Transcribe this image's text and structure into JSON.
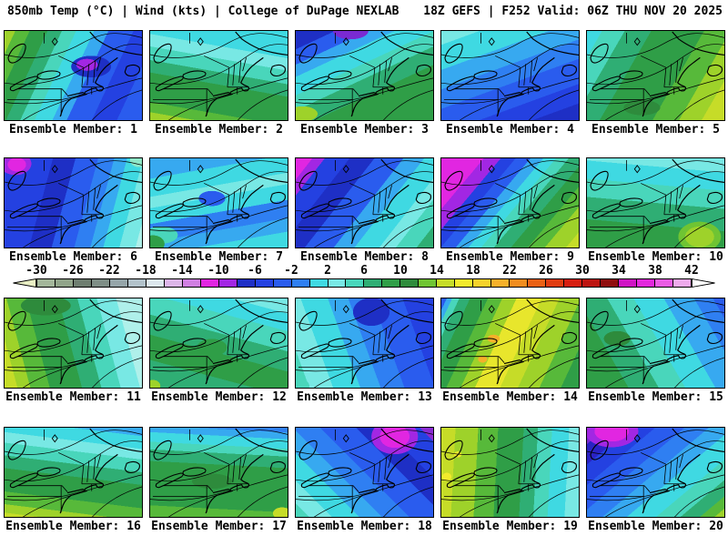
{
  "header": {
    "left": "850mb Temp (°C) | Wind (kts) | College of DuPage NEXLAB",
    "right": "18Z GEFS | F252 Valid: 06Z THU NOV 20 2025"
  },
  "product": {
    "parameter": "850mb Temperature (°C) and Wind (kts)",
    "model_run": "18Z GEFS",
    "forecast_hour": "F252",
    "valid_time": "06Z THU NOV 20 2025",
    "source": "College of DuPage NEXLAB"
  },
  "colorbar": {
    "unit": "°C",
    "ticks": [
      -30,
      -26,
      -22,
      -18,
      -14,
      -10,
      -6,
      -2,
      2,
      6,
      10,
      14,
      18,
      22,
      26,
      30,
      34,
      38,
      42
    ],
    "min": -30,
    "max": 42,
    "cell_width_degrees": 2,
    "underflow_arrow_color": "#e9efc4",
    "overflow_arrow_color": "#ffffff",
    "cells": [
      {
        "from": -30,
        "color": "#a3b69a"
      },
      {
        "from": -28,
        "color": "#90a489"
      },
      {
        "from": -26,
        "color": "#6e7e70"
      },
      {
        "from": -24,
        "color": "#7e8e86"
      },
      {
        "from": -22,
        "color": "#95a5a9"
      },
      {
        "from": -20,
        "color": "#b2c2ca"
      },
      {
        "from": -18,
        "color": "#dce7ed"
      },
      {
        "from": -16,
        "color": "#dcb5e8"
      },
      {
        "from": -14,
        "color": "#d07fe2"
      },
      {
        "from": -12,
        "color": "#e126e1"
      },
      {
        "from": -10,
        "color": "#a227e3"
      },
      {
        "from": -8,
        "color": "#1e2fc5"
      },
      {
        "from": -6,
        "color": "#2441e1"
      },
      {
        "from": -4,
        "color": "#2a5cee"
      },
      {
        "from": -2,
        "color": "#2f7ff2"
      },
      {
        "from": 0,
        "color": "#3fd9e2"
      },
      {
        "from": 2,
        "color": "#78e8e4"
      },
      {
        "from": 4,
        "color": "#49d6bb"
      },
      {
        "from": 6,
        "color": "#2fae74"
      },
      {
        "from": 8,
        "color": "#2f9e47"
      },
      {
        "from": 10,
        "color": "#2e8b3c"
      },
      {
        "from": 12,
        "color": "#6fc433"
      },
      {
        "from": 14,
        "color": "#c6dc28"
      },
      {
        "from": 16,
        "color": "#f2ea2c"
      },
      {
        "from": 18,
        "color": "#f5d22a"
      },
      {
        "from": 20,
        "color": "#f5b02a"
      },
      {
        "from": 22,
        "color": "#f08c1e"
      },
      {
        "from": 24,
        "color": "#ea6114"
      },
      {
        "from": 26,
        "color": "#e03c10"
      },
      {
        "from": 28,
        "color": "#d61e10"
      },
      {
        "from": 30,
        "color": "#bc1410"
      },
      {
        "from": 32,
        "color": "#8f0d0d"
      },
      {
        "from": 34,
        "color": "#cf14c4"
      },
      {
        "from": 36,
        "color": "#e228dc"
      },
      {
        "from": 38,
        "color": "#ea5ce4"
      },
      {
        "from": 40,
        "color": "#eeaaec"
      }
    ]
  },
  "panels": [
    {
      "label": "Ensemble Member: 1",
      "field": [
        "radial-gradient(ellipse 14% 12% at 60% 38%, #a227e3 0 55%, transparent 56%)",
        "radial-gradient(ellipse 24% 20% at 63% 40%, #1e2fc5 0 60%, transparent 61%)",
        "linear-gradient(115deg, #9ed22a 0 6%, #57b93a 6% 14%, #2f9e47 14% 24%, #2fae74 24% 32%, #49d6bb 32% 40%, #3fd9e2 40% 50%, #37a9f0 50% 58%, #2a5cee 58% 72%, #2441e1 72% 86%, #2a5cee 86% 100%)"
      ]
    },
    {
      "label": "Ensemble Member: 2",
      "field": [
        "linear-gradient(190deg, #3fd9e2 0 24%, #78e8e4 24% 35%, #49d6bb 35% 47%, #2fae74 47% 58%, #2f9e47 58% 84%, #57b93a 84% 93%, #9ed22a 93% 100%)"
      ]
    },
    {
      "label": "Ensemble Member: 3",
      "field": [
        "radial-gradient(ellipse 22% 16% at 40% 0%, #7a2ad2 0 58%, transparent 59%)",
        "radial-gradient(ellipse 18% 14% at 5% 93%, #9ed22a 0 60%, transparent 61%)",
        "linear-gradient(155deg, #1e2fc5 0 12%, #2a5cee 12% 22%, #37a9f0 22% 30%, #3fd9e2 30% 42%, #49d6bb 42% 52%, #2fae74 52% 64%, #2f9e47 64% 100%)"
      ]
    },
    {
      "label": "Ensemble Member: 4",
      "field": [
        "linear-gradient(160deg, #78e8e4 0 10%, #3fd9e2 10% 28%, #37a9f0 28% 42%, #2f7ff2 42% 56%, #2a5cee 56% 74%, #2441e1 74% 88%, #1e2fc5 88% 100%)"
      ]
    },
    {
      "label": "Ensemble Member: 5",
      "field": [
        "radial-gradient(ellipse 22% 14% at 40% 86%, #2e8b3c 0 60%, transparent 61%)",
        "linear-gradient(120deg, #3fd9e2 0 8%, #49d6bb 8% 20%, #2fae74 20% 34%, #2f9e47 34% 62%, #57b93a 62% 76%, #9ed22a 76% 88%, #c6dc28 88% 100%)"
      ]
    },
    {
      "label": "Ensemble Member: 6",
      "field": [
        "radial-gradient(ellipse 12% 14% at 9% 7%, #e126e1 0 55%, transparent 56%)",
        "radial-gradient(ellipse 19% 21% at 8% 6%, #a227e3 0 60%, transparent 61%)",
        "radial-gradient(ellipse 11% 13% at 98% 2%, #8fe8c8 0 60%, transparent 61%)",
        "linear-gradient(105deg, #2441e1 0 30%, #1e2fc5 30% 44%, #2a5cee 44% 58%, #2f7ff2 58% 68%, #37a9f0 68% 76%, #3fd9e2 76% 86%, #78e8e4 86% 96%, #aff0ea 96% 100%)"
      ]
    },
    {
      "label": "Ensemble Member: 7",
      "field": [
        "radial-gradient(ellipse 16% 14% at 45% 45%, #2a5cee 0 60%, transparent 61%)",
        "radial-gradient(ellipse 14% 16% at 2% 96%, #2f9e47 0 60%, transparent 61%)",
        "radial-gradient(ellipse 20% 16% at 8% 86%, #49d6bb 0 60%, transparent 61%)",
        "linear-gradient(170deg, #37a9f0 0 18%, #3fd9e2 18% 34%, #78e8e4 34% 44%, #3fd9e2 44% 58%, #2f7ff2 58% 74%, #37a9f0 74% 86%, #3fd9e2 86% 100%)"
      ]
    },
    {
      "label": "Ensemble Member: 8",
      "field": [
        "linear-gradient(128deg, #e126e1 0 8%, #a227e3 8% 14%, #2441e1 14% 26%, #1e2fc5 26% 38%, #2a5cee 38% 52%, #37a9f0 52% 62%, #3fd9e2 62% 74%, #78e8e4 74% 82%, #49d6bb 82% 92%, #2fae74 92% 100%)"
      ]
    },
    {
      "label": "Ensemble Member: 9",
      "field": [
        "linear-gradient(130deg, #e126e1 0 20%, #a227e3 20% 28%, #2441e1 28% 35%, #2a5cee 35% 42%, #37a9f0 42% 48%, #3fd9e2 48% 54%, #49d6bb 54% 60%, #2fae74 60% 68%, #2f9e47 68% 76%, #57b93a 76% 84%, #9ed22a 84% 94%, #c6dc28 94% 100%)"
      ]
    },
    {
      "label": "Ensemble Member: 10",
      "field": [
        "radial-gradient(ellipse 22% 24% at 82% 88%, #9ed22a 0 48%, #6fc433 48% 70%, transparent 71%)",
        "linear-gradient(185deg, #78e8e4 0 14%, #3fd9e2 14% 32%, #49d6bb 32% 50%, #2fae74 50% 72%, #2f9e47 72% 100%)"
      ]
    },
    {
      "label": "Ensemble Member: 11",
      "field": [
        "radial-gradient(ellipse 30% 18% at 30% 8%, #2e8b3c 0 60%, transparent 61%)",
        "linear-gradient(75deg, #c6dc28 0 8%, #9ed22a 8% 16%, #57b93a 16% 28%, #2f9e47 28% 48%, #2fae74 48% 60%, #49d6bb 60% 72%, #78e8e4 72% 84%, #aff0ea 84% 100%)"
      ]
    },
    {
      "label": "Ensemble Member: 12",
      "field": [
        "radial-gradient(ellipse 18% 16% at 45% 55%, #2f9e47 0 60%, transparent 61%)",
        "radial-gradient(ellipse 9% 11% at 2% 98%, #9ed22a 0 60%, transparent 61%)",
        "linear-gradient(195deg, #78e8e4 0 12%, #3fd9e2 12% 26%, #49d6bb 26% 42%, #2fae74 42% 58%, #2f9e47 58% 78%, #2fae74 78% 100%)"
      ]
    },
    {
      "label": "Ensemble Member: 13",
      "field": [
        "radial-gradient(ellipse 22% 26% at 55% 15%, #1e2fc5 0 60%, transparent 61%)",
        "radial-gradient(ellipse 13% 13% at 2% 98%, #49d6bb 0 60%, transparent 61%)",
        "linear-gradient(250deg, #2441e1 0 18%, #2a5cee 18% 36%, #2f7ff2 36% 50%, #37a9f0 50% 62%, #3fd9e2 62% 78%, #78e8e4 78% 92%, #49d6bb 92% 100%)"
      ]
    },
    {
      "label": "Ensemble Member: 14",
      "field": [
        "radial-gradient(ellipse 8% 8% at 38% 45%, #f5b02a 0 55%, transparent 56%)",
        "radial-gradient(ellipse 6% 7% at 30% 68%, #f5b02a 0 55%, transparent 56%)",
        "linear-gradient(115deg, #2a5cee 0 3%, #37a9f0 3% 6%, #49d6bb 6% 10%, #2fae74 10% 16%, #2f9e47 16% 26%, #57b93a 26% 34%, #9ed22a 34% 42%, #e8e62c 42% 56%, #c6dc28 56% 66%, #9ed22a 66% 78%, #57b93a 78% 90%, #2f9e47 90% 100%)"
      ]
    },
    {
      "label": "Ensemble Member: 15",
      "field": [
        "radial-gradient(ellipse 16% 14% at 22% 45%, #2e8b3c 0 60%, transparent 61%)",
        "linear-gradient(60deg, #2f9e47 0 22%, #2fae74 22% 38%, #49d6bb 38% 52%, #3fd9e2 52% 68%, #37a9f0 68% 84%, #2f7ff2 84% 94%, #2a5cee 94% 100%)"
      ]
    },
    {
      "label": "Ensemble Member: 16",
      "field": [
        "linear-gradient(187deg, #37a9f0 0 8%, #3fd9e2 8% 20%, #78e8e4 20% 30%, #49d6bb 30% 42%, #2fae74 42% 54%, #2f9e47 54% 76%, #57b93a 76% 88%, #9ed22a 88% 96%, #c6dc28 96% 100%)"
      ]
    },
    {
      "label": "Ensemble Member: 17",
      "field": [
        "radial-gradient(ellipse 11% 11% at 96% 96%, #c6dc28 0 60%, transparent 61%)",
        "radial-gradient(ellipse 24% 14% at 45% 60%, #2e8b3c 0 60%, transparent 61%)",
        "linear-gradient(183deg, #2f7ff2 0 5%, #37a9f0 5% 12%, #3fd9e2 12% 22%, #49d6bb 22% 30%, #2fae74 30% 42%, #2f9e47 42% 88%, #57b93a 88% 100%)"
      ]
    },
    {
      "label": "Ensemble Member: 18",
      "field": [
        "radial-gradient(ellipse 24% 28% at 72% 10%, #e126e1 0 45%, #a227e3 45% 70%, transparent 71%)",
        "linear-gradient(225deg, #8a2ad2 0 6%, #2441e1 6% 22%, #1e2fc5 22% 34%, #2a5cee 34% 50%, #2f7ff2 50% 62%, #37a9f0 62% 72%, #3fd9e2 72% 84%, #78e8e4 84% 94%, #49d6bb 94% 100%)"
      ]
    },
    {
      "label": "Ensemble Member: 19",
      "field": [
        "radial-gradient(ellipse 6% 8% at 4% 55%, #f2ea2c 0 55%, transparent 56%)",
        "radial-gradient(ellipse 5% 6% at 12% 30%, #f2ea2c 0 55%, transparent 56%)",
        "linear-gradient(93deg, #c6dc28 0 10%, #9ed22a 10% 26%, #57b93a 26% 40%, #2f9e47 40% 58%, #2fae74 58% 68%, #49d6bb 68% 78%, #3fd9e2 78% 90%, #78e8e4 90% 100%)"
      ]
    },
    {
      "label": "Ensemble Member: 20",
      "field": [
        "radial-gradient(ellipse 26% 24% at 18% 4%, #e126e1 0 48%, #a227e3 48% 74%, transparent 75%)",
        "linear-gradient(140deg, #7a2ad2 0 8%, #2a22c4 8% 18%, #2441e1 18% 28%, #2a5cee 28% 40%, #2f7ff2 40% 50%, #37a9f0 50% 60%, #3fd9e2 60% 72%, #49d6bb 72% 82%, #2fae74 82% 90%, #57b93a 90% 96%, #9ed22a 96% 100%)"
      ]
    }
  ]
}
